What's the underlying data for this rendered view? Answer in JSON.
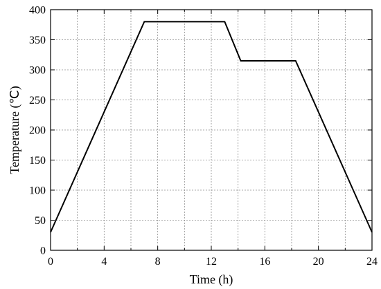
{
  "chart_data": {
    "type": "line",
    "title": "",
    "xlabel": "Time (h)",
    "ylabel": "Temperature (℃)",
    "xlim": [
      0,
      24
    ],
    "ylim": [
      0,
      400
    ],
    "xticks": [
      0,
      4,
      8,
      12,
      16,
      20,
      24
    ],
    "yticks": [
      0,
      50,
      100,
      150,
      200,
      250,
      300,
      350,
      400
    ],
    "xgrid": [
      0,
      2,
      4,
      6,
      8,
      10,
      12,
      14,
      16,
      18,
      20,
      22,
      24
    ],
    "ygrid": [
      0,
      50,
      100,
      150,
      200,
      250,
      300,
      350,
      400
    ],
    "grid": true,
    "series": [
      {
        "color": "#000000",
        "x": [
          0,
          7,
          13,
          14.2,
          18.3,
          24
        ],
        "y": [
          30,
          380,
          380,
          315,
          315,
          30
        ]
      }
    ]
  }
}
